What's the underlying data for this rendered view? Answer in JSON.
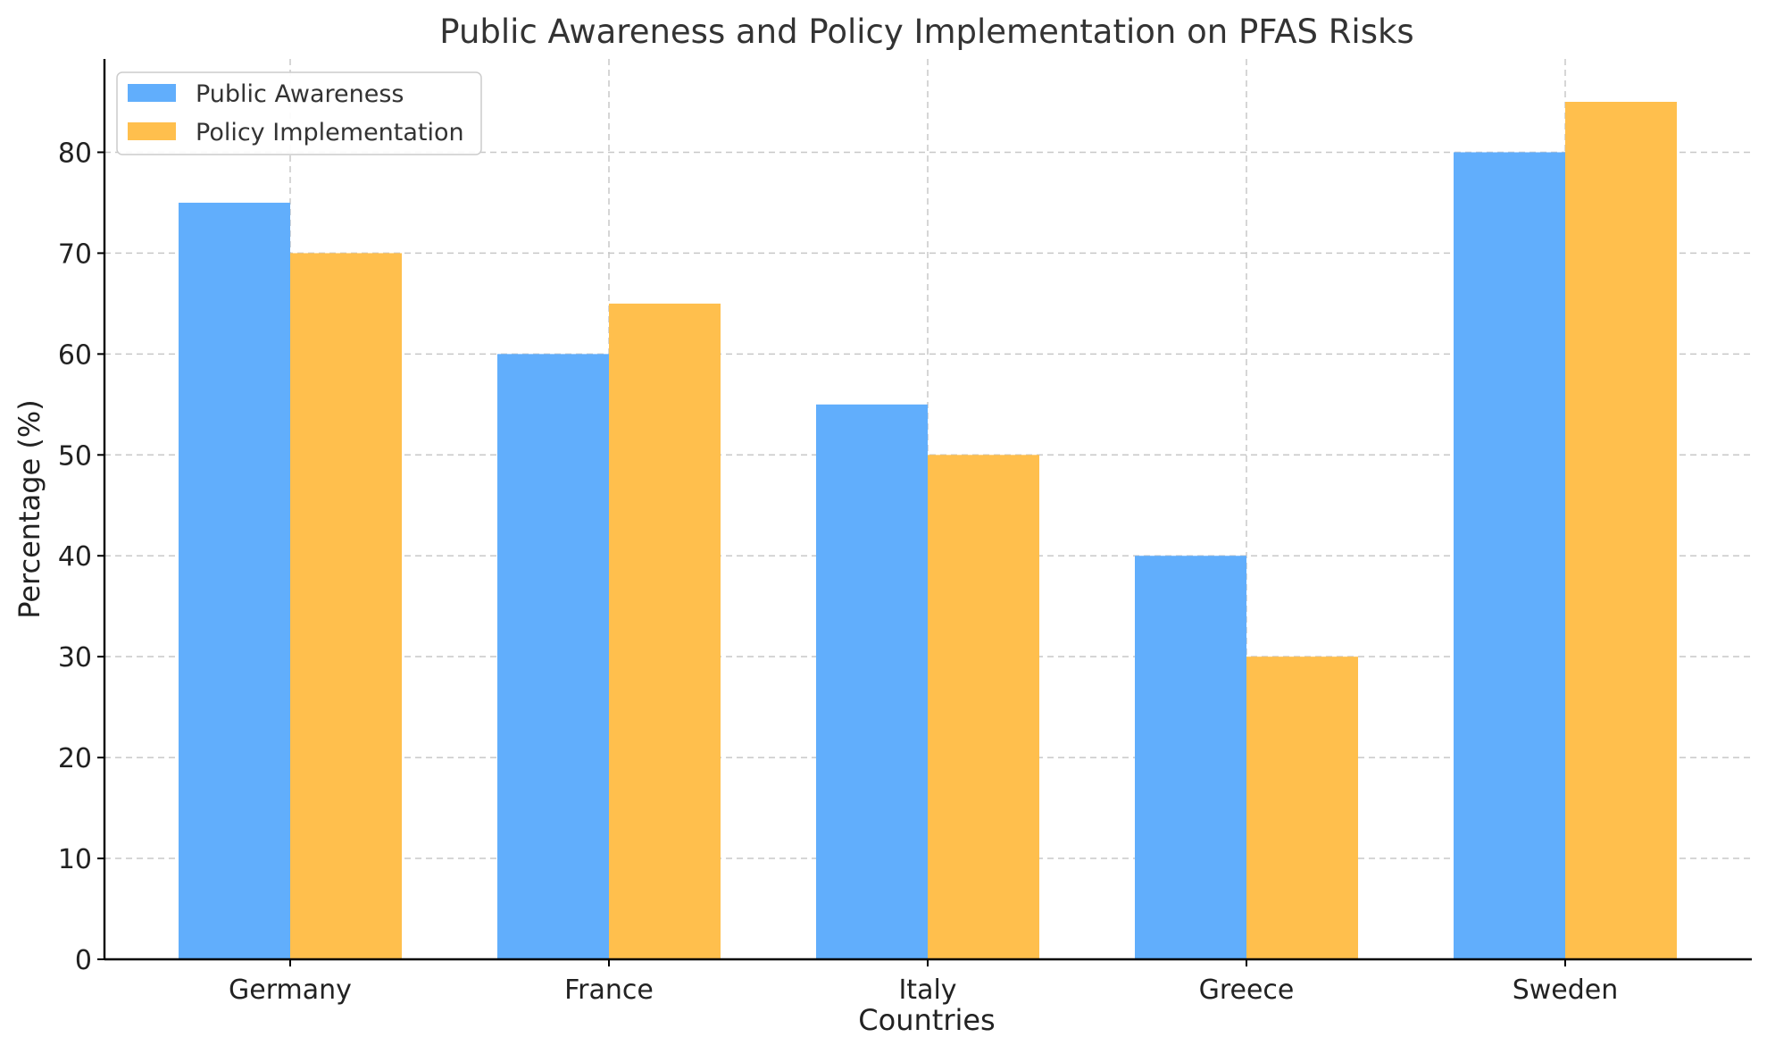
{
  "chart_data": {
    "type": "bar",
    "title": "Public Awareness and Policy Implementation on PFAS Risks",
    "xlabel": "Countries",
    "ylabel": "Percentage (%)",
    "categories": [
      "Germany",
      "France",
      "Italy",
      "Greece",
      "Sweden"
    ],
    "series": [
      {
        "name": "Public Awareness",
        "values": [
          75,
          60,
          55,
          40,
          80
        ],
        "color": "#61aefc"
      },
      {
        "name": "Policy Implementation",
        "values": [
          70,
          65,
          50,
          30,
          85
        ],
        "color": "#ffbf4d"
      }
    ],
    "ylim": [
      0,
      89.25
    ],
    "yticks": [
      0,
      10,
      20,
      30,
      40,
      50,
      60,
      70,
      80
    ],
    "grid": true,
    "legend": "top-left"
  }
}
